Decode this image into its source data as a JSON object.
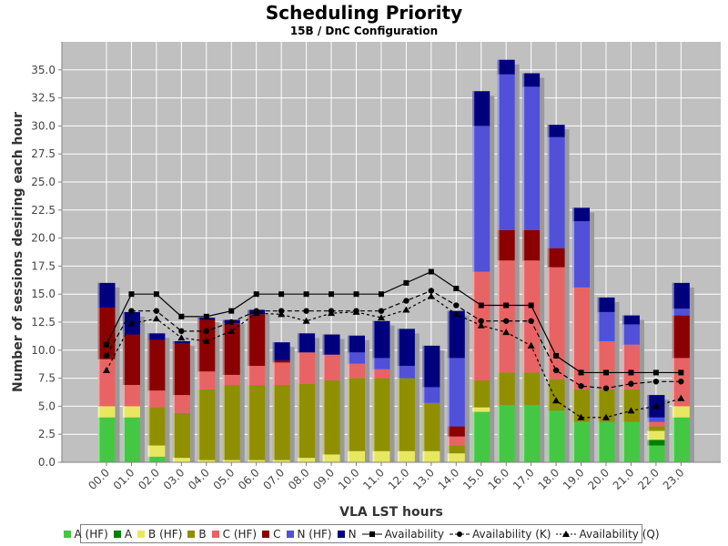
{
  "chart_data": {
    "type": "bar",
    "title": "Scheduling Priority",
    "subtitle": "15B / DnC Configuration",
    "xlabel": "VLA LST hours",
    "ylabel": "Number of sessions desiring each hour",
    "ylim": [
      0,
      37.5
    ],
    "yticks": [
      "0.0",
      "2.5",
      "5.0",
      "7.5",
      "10.0",
      "12.5",
      "15.0",
      "17.5",
      "20.0",
      "22.5",
      "25.0",
      "27.5",
      "30.0",
      "32.5",
      "35.0"
    ],
    "categories": [
      "00.0",
      "01.0",
      "02.0",
      "03.0",
      "04.0",
      "05.0",
      "06.0",
      "07.0",
      "08.0",
      "09.0",
      "10.0",
      "11.0",
      "12.0",
      "13.0",
      "14.0",
      "15.0",
      "16.0",
      "17.0",
      "18.0",
      "19.0",
      "20.0",
      "21.0",
      "22.0",
      "23.0"
    ],
    "stacking": "stacked",
    "series": [
      {
        "name": "A (HF)",
        "color": "#44c844",
        "values": [
          4,
          4,
          0.5,
          0,
          0,
          0,
          0,
          0,
          0,
          0,
          0,
          0,
          0,
          0,
          0,
          4.5,
          5.1,
          5.1,
          4.6,
          3.6,
          3.6,
          3.6,
          1.5,
          4
        ]
      },
      {
        "name": "A",
        "color": "#008000",
        "values": [
          0,
          0,
          0,
          0,
          0,
          0,
          0,
          0,
          0,
          0,
          0,
          0,
          0,
          0,
          0,
          0,
          0,
          0,
          0,
          0,
          0,
          0,
          0.5,
          0
        ]
      },
      {
        "name": "B (HF)",
        "color": "#e8e860",
        "values": [
          1,
          1,
          1,
          0.4,
          0.2,
          0.2,
          0.2,
          0.2,
          0.4,
          0.7,
          1,
          1,
          1,
          1,
          0.8,
          0.4,
          0,
          0,
          0,
          0,
          0,
          0,
          0.8,
          1
        ]
      },
      {
        "name": "B",
        "color": "#8f8f00",
        "values": [
          0,
          0,
          3.4,
          4,
          6.3,
          6.7,
          6.7,
          6.7,
          6.6,
          6.6,
          6.5,
          6.5,
          6.5,
          4.3,
          0.7,
          2.4,
          2.9,
          2.9,
          2.8,
          2.9,
          2.9,
          2.9,
          0.4,
          0
        ]
      },
      {
        "name": "C (HF)",
        "color": "#e86464",
        "values": [
          4.2,
          1.9,
          1.5,
          1.6,
          1.6,
          0.9,
          1.7,
          2,
          2.8,
          2.3,
          1.3,
          0.8,
          0,
          0,
          0.8,
          9.7,
          10,
          10,
          10,
          9.1,
          4.3,
          4,
          0.4,
          4.3
        ]
      },
      {
        "name": "C",
        "color": "#8b0000",
        "values": [
          4.6,
          4.5,
          4.5,
          4.6,
          4.6,
          4.6,
          4.6,
          0.2,
          0,
          0,
          0,
          0,
          0,
          0,
          0.9,
          0,
          2.7,
          2.7,
          1.7,
          0,
          0,
          0,
          0,
          3.8
        ]
      },
      {
        "name": "N (HF)",
        "color": "#5050d8",
        "values": [
          0,
          0,
          0,
          0,
          0,
          0,
          0,
          0,
          0,
          0,
          1,
          1,
          1.1,
          1.4,
          6.1,
          13,
          13.9,
          12.8,
          9.9,
          5.9,
          2.6,
          1.8,
          0.4,
          0.6
        ]
      },
      {
        "name": "N",
        "color": "#00007f",
        "values": [
          2.2,
          2,
          0.6,
          0.2,
          0.2,
          0.3,
          0.4,
          1.6,
          1.7,
          1.8,
          1.5,
          3.3,
          3.3,
          3.7,
          4.2,
          3.1,
          1.3,
          1.2,
          1.1,
          1.2,
          1.3,
          0.8,
          2,
          2.3
        ]
      }
    ],
    "lines": [
      {
        "name": "Availability",
        "marker": "square",
        "dash": "solid",
        "values": [
          10.5,
          15,
          15,
          13,
          13,
          13.5,
          15,
          15,
          15,
          15,
          15,
          15,
          16,
          17,
          15.5,
          14,
          14,
          14,
          9.5,
          8,
          8,
          8,
          8,
          8
        ]
      },
      {
        "name": "Availability (K)",
        "marker": "circle",
        "dash": "dashed",
        "values": [
          9.5,
          13.5,
          13.5,
          11.7,
          11.7,
          12.5,
          13.5,
          13.5,
          13.5,
          13.5,
          13.5,
          13.5,
          14.4,
          15.3,
          14,
          12.6,
          12.6,
          12.6,
          8.2,
          6.8,
          6.6,
          7,
          7.2,
          7.2
        ]
      },
      {
        "name": "Availability (Q)",
        "marker": "triangle",
        "dash": "dotted",
        "values": [
          8.2,
          12.4,
          12.8,
          11.1,
          10.8,
          11.7,
          13.3,
          13.2,
          12.6,
          13.3,
          13.4,
          12.9,
          13.6,
          14.8,
          13.2,
          12.2,
          11.6,
          10.4,
          5.5,
          4,
          4,
          4.6,
          5,
          5.7
        ]
      }
    ],
    "legend": "bottom",
    "grid": true
  }
}
